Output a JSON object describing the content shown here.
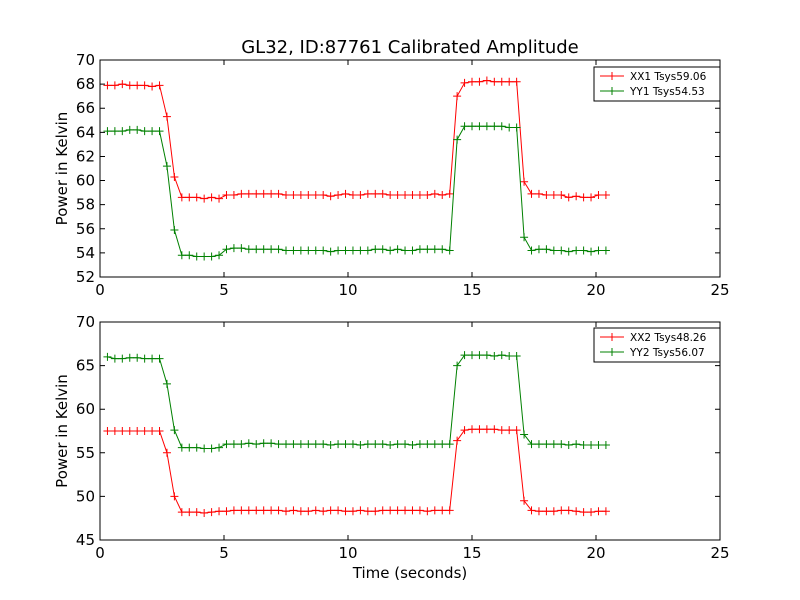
{
  "chart_data": [
    {
      "type": "line",
      "title": "GL32, ID:87761 Calibrated Amplitude",
      "xlabel": "",
      "ylabel": "Power in Kelvin",
      "xlim": [
        0,
        25
      ],
      "ylim": [
        52,
        70
      ],
      "xticks": [
        0,
        5,
        10,
        15,
        20,
        25
      ],
      "yticks": [
        52,
        54,
        56,
        58,
        60,
        62,
        64,
        66,
        68,
        70
      ],
      "legend_position": "top-right",
      "series": [
        {
          "name": "XX1 Tsys59.06",
          "color": "#ff0000",
          "x": [
            0.3,
            0.6,
            0.9,
            1.2,
            1.5,
            1.8,
            2.1,
            2.4,
            2.7,
            3.0,
            3.3,
            3.6,
            3.9,
            4.2,
            4.5,
            4.8,
            5.1,
            5.4,
            5.7,
            6.0,
            6.3,
            6.6,
            6.9,
            7.2,
            7.5,
            7.8,
            8.1,
            8.4,
            8.7,
            9.0,
            9.3,
            9.6,
            9.9,
            10.2,
            10.5,
            10.8,
            11.1,
            11.4,
            11.7,
            12.0,
            12.3,
            12.6,
            12.9,
            13.2,
            13.5,
            13.8,
            14.1,
            14.4,
            14.7,
            15.0,
            15.3,
            15.6,
            15.9,
            16.2,
            16.5,
            16.8,
            17.1,
            17.4,
            17.7,
            18.0,
            18.3,
            18.6,
            18.9,
            19.2,
            19.5,
            19.8,
            20.1,
            20.4
          ],
          "values": [
            67.9,
            67.9,
            68.0,
            67.9,
            67.9,
            67.9,
            67.8,
            67.9,
            65.3,
            60.3,
            58.6,
            58.6,
            58.6,
            58.5,
            58.6,
            58.5,
            58.8,
            58.8,
            58.9,
            58.9,
            58.9,
            58.9,
            58.9,
            58.9,
            58.8,
            58.8,
            58.8,
            58.8,
            58.8,
            58.8,
            58.7,
            58.8,
            58.9,
            58.8,
            58.8,
            58.9,
            58.9,
            58.9,
            58.8,
            58.8,
            58.8,
            58.8,
            58.8,
            58.8,
            58.9,
            58.8,
            58.9,
            67.0,
            68.1,
            68.2,
            68.2,
            68.3,
            68.2,
            68.2,
            68.2,
            68.2,
            59.9,
            58.9,
            58.9,
            58.8,
            58.8,
            58.8,
            58.6,
            58.7,
            58.6,
            58.6,
            58.8,
            58.8
          ]
        },
        {
          "name": "YY1 Tsys54.53",
          "color": "#008000",
          "x": [
            0.3,
            0.6,
            0.9,
            1.2,
            1.5,
            1.8,
            2.1,
            2.4,
            2.7,
            3.0,
            3.3,
            3.6,
            3.9,
            4.2,
            4.5,
            4.8,
            5.1,
            5.4,
            5.7,
            6.0,
            6.3,
            6.6,
            6.9,
            7.2,
            7.5,
            7.8,
            8.1,
            8.4,
            8.7,
            9.0,
            9.3,
            9.6,
            9.9,
            10.2,
            10.5,
            10.8,
            11.1,
            11.4,
            11.7,
            12.0,
            12.3,
            12.6,
            12.9,
            13.2,
            13.5,
            13.8,
            14.1,
            14.4,
            14.7,
            15.0,
            15.3,
            15.6,
            15.9,
            16.2,
            16.5,
            16.8,
            17.1,
            17.4,
            17.7,
            18.0,
            18.3,
            18.6,
            18.9,
            19.2,
            19.5,
            19.8,
            20.1,
            20.4
          ],
          "values": [
            64.1,
            64.1,
            64.1,
            64.2,
            64.2,
            64.1,
            64.1,
            64.1,
            61.2,
            55.9,
            53.8,
            53.8,
            53.7,
            53.7,
            53.7,
            53.8,
            54.3,
            54.4,
            54.4,
            54.3,
            54.3,
            54.3,
            54.3,
            54.3,
            54.2,
            54.2,
            54.2,
            54.2,
            54.2,
            54.2,
            54.1,
            54.2,
            54.2,
            54.2,
            54.2,
            54.2,
            54.3,
            54.3,
            54.2,
            54.3,
            54.2,
            54.2,
            54.3,
            54.3,
            54.3,
            54.3,
            54.2,
            63.4,
            64.5,
            64.5,
            64.5,
            64.5,
            64.5,
            64.5,
            64.4,
            64.4,
            55.3,
            54.2,
            54.3,
            54.3,
            54.2,
            54.2,
            54.1,
            54.2,
            54.2,
            54.1,
            54.2,
            54.2
          ]
        }
      ]
    },
    {
      "type": "line",
      "title": "",
      "xlabel": "Time (seconds)",
      "ylabel": "Power in Kelvin",
      "xlim": [
        0,
        25
      ],
      "ylim": [
        45,
        70
      ],
      "xticks": [
        0,
        5,
        10,
        15,
        20,
        25
      ],
      "yticks": [
        45,
        50,
        55,
        60,
        65,
        70
      ],
      "legend_position": "top-right",
      "series": [
        {
          "name": "XX2 Tsys48.26",
          "color": "#ff0000",
          "x": [
            0.3,
            0.6,
            0.9,
            1.2,
            1.5,
            1.8,
            2.1,
            2.4,
            2.7,
            3.0,
            3.3,
            3.6,
            3.9,
            4.2,
            4.5,
            4.8,
            5.1,
            5.4,
            5.7,
            6.0,
            6.3,
            6.6,
            6.9,
            7.2,
            7.5,
            7.8,
            8.1,
            8.4,
            8.7,
            9.0,
            9.3,
            9.6,
            9.9,
            10.2,
            10.5,
            10.8,
            11.1,
            11.4,
            11.7,
            12.0,
            12.3,
            12.6,
            12.9,
            13.2,
            13.5,
            13.8,
            14.1,
            14.4,
            14.7,
            15.0,
            15.3,
            15.6,
            15.9,
            16.2,
            16.5,
            16.8,
            17.1,
            17.4,
            17.7,
            18.0,
            18.3,
            18.6,
            18.9,
            19.2,
            19.5,
            19.8,
            20.1,
            20.4
          ],
          "values": [
            57.5,
            57.5,
            57.5,
            57.5,
            57.5,
            57.5,
            57.5,
            57.5,
            55.0,
            50.0,
            48.2,
            48.2,
            48.2,
            48.1,
            48.2,
            48.3,
            48.3,
            48.4,
            48.4,
            48.4,
            48.4,
            48.4,
            48.4,
            48.4,
            48.3,
            48.4,
            48.3,
            48.3,
            48.4,
            48.3,
            48.4,
            48.4,
            48.3,
            48.3,
            48.4,
            48.3,
            48.3,
            48.4,
            48.4,
            48.4,
            48.4,
            48.4,
            48.4,
            48.3,
            48.4,
            48.4,
            48.4,
            56.4,
            57.6,
            57.7,
            57.7,
            57.7,
            57.7,
            57.6,
            57.6,
            57.6,
            49.5,
            48.4,
            48.3,
            48.3,
            48.3,
            48.4,
            48.4,
            48.3,
            48.2,
            48.2,
            48.3,
            48.3
          ]
        },
        {
          "name": "YY2 Tsys56.07",
          "color": "#008000",
          "x": [
            0.3,
            0.6,
            0.9,
            1.2,
            1.5,
            1.8,
            2.1,
            2.4,
            2.7,
            3.0,
            3.3,
            3.6,
            3.9,
            4.2,
            4.5,
            4.8,
            5.1,
            5.4,
            5.7,
            6.0,
            6.3,
            6.6,
            6.9,
            7.2,
            7.5,
            7.8,
            8.1,
            8.4,
            8.7,
            9.0,
            9.3,
            9.6,
            9.9,
            10.2,
            10.5,
            10.8,
            11.1,
            11.4,
            11.7,
            12.0,
            12.3,
            12.6,
            12.9,
            13.2,
            13.5,
            13.8,
            14.1,
            14.4,
            14.7,
            15.0,
            15.3,
            15.6,
            15.9,
            16.2,
            16.5,
            16.8,
            17.1,
            17.4,
            17.7,
            18.0,
            18.3,
            18.6,
            18.9,
            19.2,
            19.5,
            19.8,
            20.1,
            20.4
          ],
          "values": [
            66.0,
            65.8,
            65.8,
            65.9,
            65.9,
            65.8,
            65.8,
            65.8,
            62.9,
            57.6,
            55.6,
            55.6,
            55.6,
            55.5,
            55.5,
            55.6,
            56.0,
            56.0,
            56.0,
            56.1,
            56.0,
            56.1,
            56.1,
            56.0,
            56.0,
            56.0,
            56.0,
            56.0,
            56.0,
            56.0,
            55.9,
            56.0,
            56.0,
            56.0,
            55.9,
            56.0,
            56.0,
            56.0,
            55.9,
            56.0,
            56.0,
            55.9,
            56.0,
            56.0,
            56.0,
            56.0,
            56.0,
            65.0,
            66.2,
            66.2,
            66.2,
            66.2,
            66.1,
            66.2,
            66.1,
            66.1,
            57.1,
            56.0,
            56.0,
            56.0,
            56.0,
            56.0,
            55.9,
            56.0,
            55.9,
            55.9,
            55.9,
            55.9
          ]
        }
      ]
    }
  ]
}
